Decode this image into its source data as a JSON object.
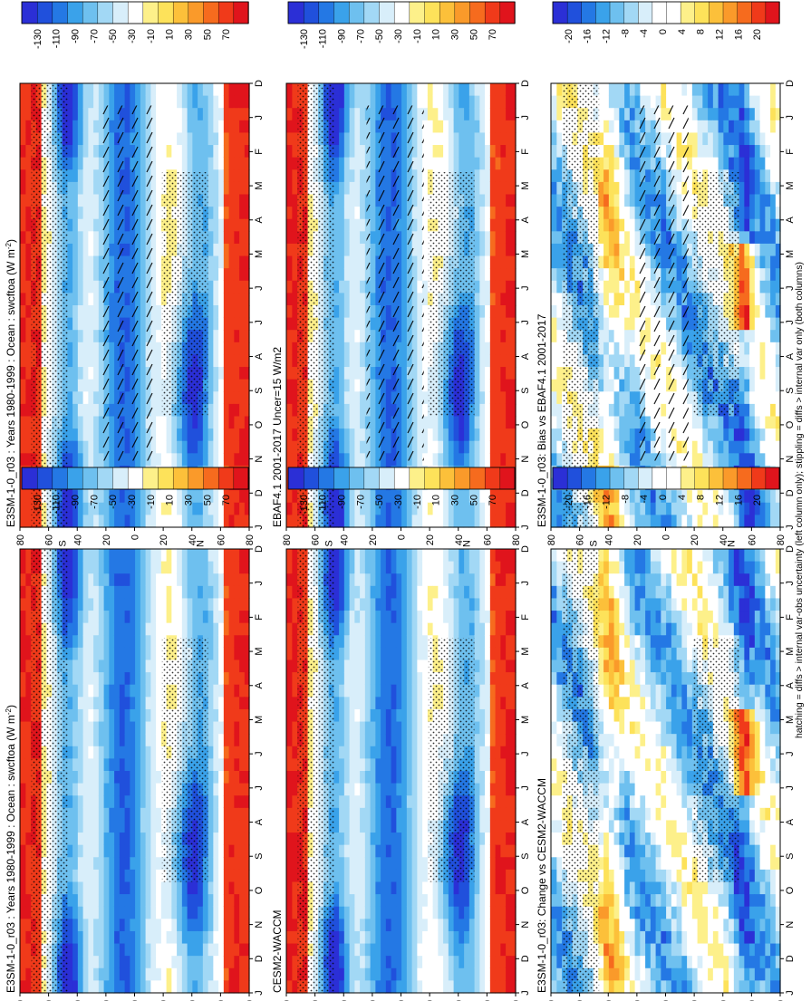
{
  "footer": "hatching = diffs > internal var-obs uncertainty (left column only); stippling = diffs > internal var only (both columns)",
  "months": [
    "D",
    "J",
    "F",
    "M",
    "A",
    "M",
    "J",
    "J",
    "A",
    "S",
    "O",
    "N",
    "D",
    "J"
  ],
  "lat_ticks": [
    "80",
    "60",
    "40",
    "20",
    "0",
    "20",
    "40",
    "60",
    "80"
  ],
  "lat_hemi_labels": [
    "N",
    "S"
  ],
  "palettes": {
    "abs": [
      "#e0141c",
      "#f03a1a",
      "#f66b1e",
      "#fa9a2a",
      "#fcc03a",
      "#fde25a",
      "#fdf08a",
      "#ffffff",
      "#d8eefa",
      "#a2d8f5",
      "#6ec0ef",
      "#3aa2ea",
      "#2478e4",
      "#2050dc",
      "#2b2fd6"
    ],
    "diff": [
      "#e0141c",
      "#f03a1a",
      "#f66b1e",
      "#fa9a2a",
      "#fcc03a",
      "#fde25a",
      "#fdf08a",
      "#ffffff",
      "#ffffff",
      "#d8eefa",
      "#a2d8f5",
      "#6ec0ef",
      "#3aa2ea",
      "#2478e4",
      "#2050dc",
      "#2b2fd6"
    ]
  },
  "colorbars": [
    {
      "id": "cb-abs-left",
      "ticks": [
        "70",
        "50",
        "30",
        "10",
        "-10",
        "-30",
        "-50",
        "-70",
        "-90",
        "-110",
        "-130"
      ]
    },
    {
      "id": "cb-abs-right",
      "ticks": [
        "70",
        "50",
        "30",
        "10",
        "-10",
        "-30",
        "-50",
        "-70",
        "-90",
        "-110",
        "-130"
      ]
    },
    {
      "id": "cb-abs-left-mid",
      "ticks": [
        "70",
        "50",
        "30",
        "10",
        "-10",
        "-30",
        "-50",
        "-70",
        "-90",
        "-110",
        "-130"
      ]
    },
    {
      "id": "cb-abs-right-mid",
      "ticks": [
        "70",
        "50",
        "30",
        "10",
        "-10",
        "-30",
        "-50",
        "-70",
        "-90",
        "-110",
        "-130"
      ]
    },
    {
      "id": "cb-diff-left",
      "ticks": [
        "20",
        "16",
        "12",
        "8",
        "4",
        "0",
        "-4",
        "-8",
        "-12",
        "-16",
        "-20"
      ]
    },
    {
      "id": "cb-diff-right",
      "ticks": [
        "20",
        "16",
        "12",
        "8",
        "4",
        "0",
        "-4",
        "-8",
        "-12",
        "-16",
        "-20"
      ]
    }
  ],
  "panels": [
    {
      "id": "p-tl",
      "title": "E3SM-1-0_r03 : Years 1980-1999 : Ocean : swcftoa (W m",
      "title_sup": "-2",
      "title_close": ")",
      "kind": "abs",
      "hatch": true
    },
    {
      "id": "p-tr",
      "title": "E3SM-1-0_r03 : Years 1980-1999 : Ocean : swcftoa (W m",
      "title_sup": "-2",
      "title_close": ")",
      "kind": "abs",
      "hatch": false
    },
    {
      "id": "p-ml",
      "title": "EBAF4.1 2001-2017 Uncer=15 W/m2",
      "title_sup": "",
      "title_close": "",
      "kind": "abs",
      "hatch": true
    },
    {
      "id": "p-mr",
      "title": "CESM2-WACCM",
      "title_sup": "",
      "title_close": "",
      "kind": "abs",
      "hatch": false
    },
    {
      "id": "p-bl",
      "title": "E3SM-1-0_r03: Bias vs EBAF4.1 2001-2017",
      "title_sup": "",
      "title_close": "",
      "kind": "diff",
      "hatch": true
    },
    {
      "id": "p-br",
      "title": "E3SM-1-0_r03: Change vs CESM2-WACCM",
      "title_sup": "",
      "title_close": "",
      "kind": "diff",
      "hatch": false
    }
  ],
  "chart_data": {
    "type": "heatmap",
    "variable": "swcftoa",
    "units": "W m-2",
    "x_axis": {
      "ticks": [
        "D",
        "J",
        "F",
        "M",
        "A",
        "M",
        "J",
        "J",
        "A",
        "S",
        "O",
        "N",
        "D",
        "J"
      ]
    },
    "y_axis": {
      "ticks": [
        "80",
        "60",
        "40",
        "20",
        "0",
        "20",
        "40",
        "60",
        "80"
      ],
      "hemispheres": [
        "N",
        "S"
      ]
    },
    "colorbar_abs": [
      70,
      50,
      30,
      10,
      -10,
      -30,
      -50,
      -70,
      -90,
      -110,
      -130
    ],
    "colorbar_diff": [
      20,
      16,
      12,
      8,
      4,
      0,
      -4,
      -8,
      -12,
      -16,
      -20
    ],
    "panels": [
      "E3SM-1-0_r03 : Years 1980-1999 : Ocean : swcftoa (W m-2)",
      "EBAF4.1 2001-2017 Uncer=15 W/m2",
      "E3SM-1-0_r03: Bias vs EBAF4.1 2001-2017",
      "E3SM-1-0_r03 : Years 1980-1999 : Ocean : swcftoa (W m-2)",
      "CESM2-WACCM",
      "E3SM-1-0_r03: Change vs CESM2-WACCM"
    ]
  }
}
